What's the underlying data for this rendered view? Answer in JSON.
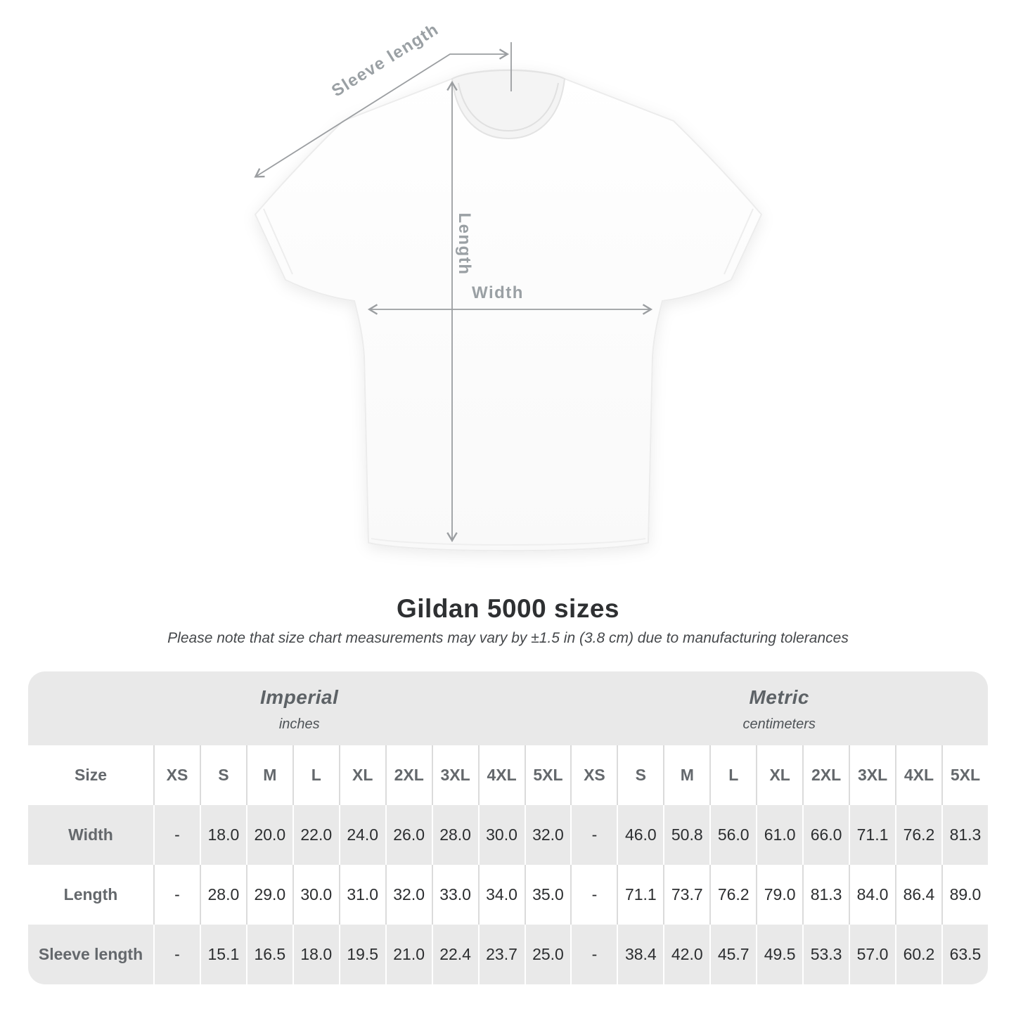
{
  "diagram": {
    "sleeve_length_label": "Sleeve length",
    "length_label": "Length",
    "width_label": "Width"
  },
  "heading": {
    "title": "Gildan 5000 sizes",
    "subtitle": "Please note that size chart measurements may vary by ±1.5 in (3.8 cm) due to manufacturing tolerances"
  },
  "table": {
    "groups": [
      {
        "label": "Imperial",
        "sublabel": "inches"
      },
      {
        "label": "Metric",
        "sublabel": "centimeters"
      }
    ],
    "size_header": "Size",
    "sizes": [
      "XS",
      "S",
      "M",
      "L",
      "XL",
      "2XL",
      "3XL",
      "4XL",
      "5XL"
    ],
    "rows": [
      {
        "label": "Width",
        "imperial": [
          "-",
          "18.0",
          "20.0",
          "22.0",
          "24.0",
          "26.0",
          "28.0",
          "30.0",
          "32.0"
        ],
        "metric": [
          "-",
          "46.0",
          "50.8",
          "56.0",
          "61.0",
          "66.0",
          "71.1",
          "76.2",
          "81.3"
        ]
      },
      {
        "label": "Length",
        "imperial": [
          "-",
          "28.0",
          "29.0",
          "30.0",
          "31.0",
          "32.0",
          "33.0",
          "34.0",
          "35.0"
        ],
        "metric": [
          "-",
          "71.1",
          "73.7",
          "76.2",
          "79.0",
          "81.3",
          "84.0",
          "86.4",
          "89.0"
        ]
      },
      {
        "label": "Sleeve length",
        "imperial": [
          "-",
          "15.1",
          "16.5",
          "18.0",
          "19.5",
          "21.0",
          "22.4",
          "23.7",
          "25.0"
        ],
        "metric": [
          "-",
          "38.4",
          "42.0",
          "45.7",
          "49.5",
          "53.3",
          "57.0",
          "60.2",
          "63.5"
        ]
      }
    ]
  },
  "colors": {
    "band_gray": "#e9e9e9",
    "separator_on_white": "#dbdbdb",
    "separator_on_gray": "#ffffff",
    "header_text": "#64686c",
    "value_text": "#2c2e30",
    "annotation_gray": "#9b9ea1",
    "title_text": "#2e3032"
  }
}
